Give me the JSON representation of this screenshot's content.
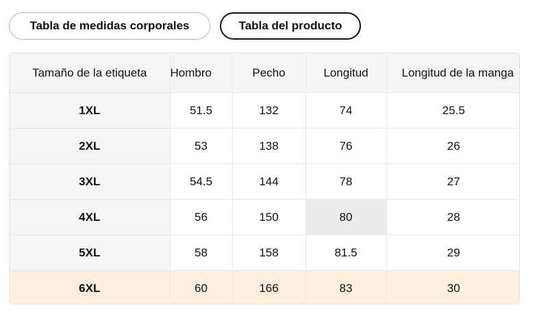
{
  "tabs": [
    "Tabla de medidas corporales",
    "Tabla del producto"
  ],
  "table": {
    "headers": [
      "Tamaño de la etiqueta",
      "Hombro",
      "Pecho",
      "Longitud",
      "Longitud de la manga"
    ],
    "rows": [
      [
        "1XL",
        51.5,
        132,
        74,
        25.5
      ],
      [
        "2XL",
        53,
        138,
        76,
        26
      ],
      [
        "3XL",
        54.5,
        144,
        78,
        27
      ],
      [
        "4XL",
        56,
        150,
        80,
        28
      ],
      [
        "5XL",
        58,
        158,
        81.5,
        29
      ],
      [
        "6XL",
        60,
        166,
        83,
        30
      ]
    ]
  }
}
